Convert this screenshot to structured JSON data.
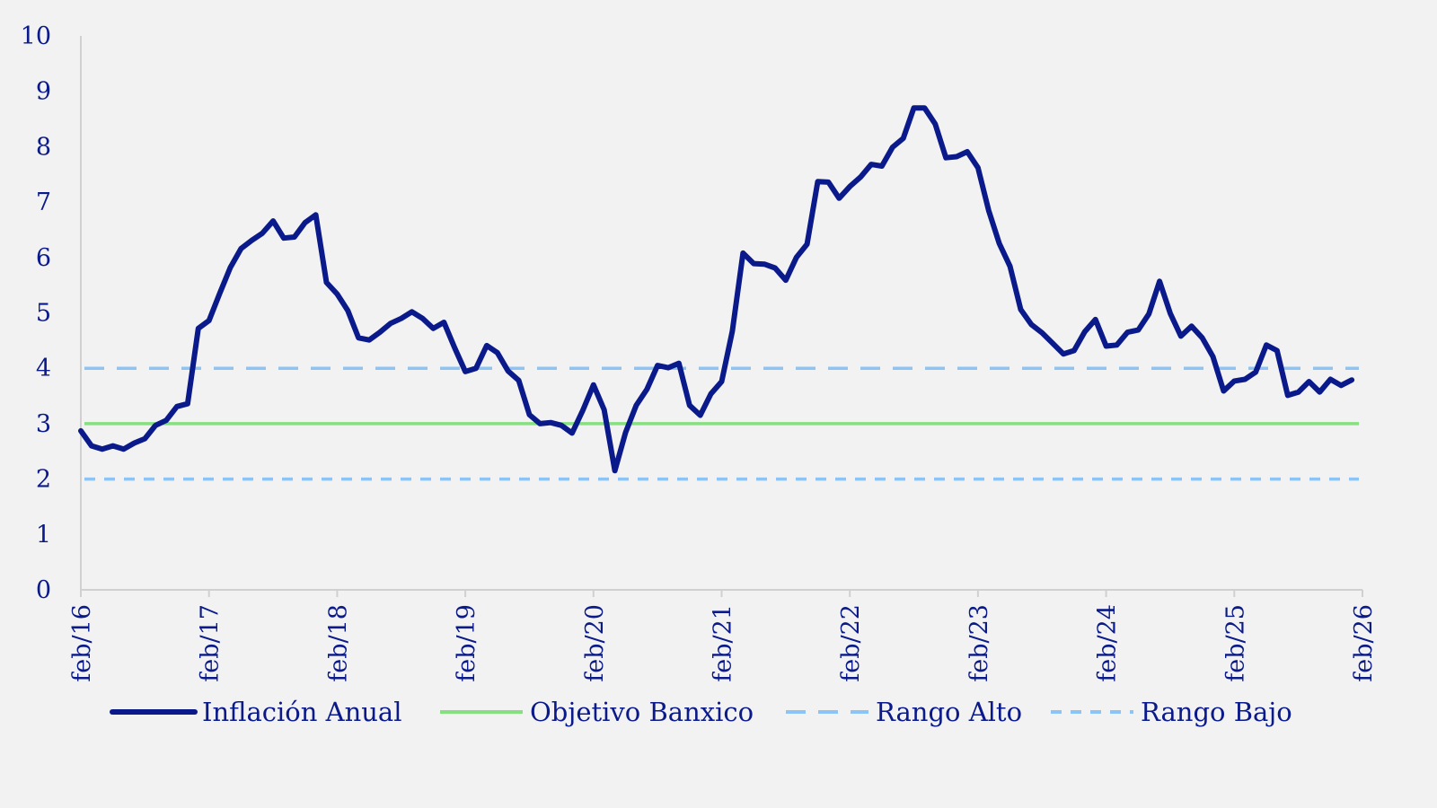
{
  "chart_data": {
    "type": "line",
    "title": "",
    "xlabel": "",
    "ylabel": "",
    "ylim": [
      0,
      10
    ],
    "yticks": [
      "0",
      "1",
      "2",
      "3",
      "4",
      "5",
      "6",
      "7",
      "8",
      "9",
      "10"
    ],
    "xticks": [
      "feb/16",
      "feb/17",
      "feb/18",
      "feb/19",
      "feb/20",
      "feb/21",
      "feb/22",
      "feb/23",
      "feb/24",
      "feb/25",
      "feb/26"
    ],
    "grid": false,
    "legend_position": "bottom",
    "start_month": "feb/16",
    "series": [
      {
        "name": "Inflación Anual",
        "color": "#0a1a8a",
        "style": "solid",
        "values": [
          2.87,
          2.6,
          2.54,
          2.6,
          2.54,
          2.65,
          2.73,
          2.97,
          3.06,
          3.31,
          3.36,
          4.72,
          4.86,
          5.35,
          5.82,
          6.16,
          6.31,
          6.44,
          6.66,
          6.35,
          6.37,
          6.63,
          6.77,
          5.55,
          5.34,
          5.04,
          4.55,
          4.51,
          4.65,
          4.81,
          4.9,
          5.02,
          4.9,
          4.72,
          4.83,
          4.37,
          3.94,
          4.0,
          4.41,
          4.28,
          3.95,
          3.78,
          3.16,
          3.0,
          3.02,
          2.97,
          2.83,
          3.24,
          3.7,
          3.25,
          2.15,
          2.84,
          3.33,
          3.62,
          4.05,
          4.01,
          4.09,
          3.33,
          3.15,
          3.54,
          3.76,
          4.67,
          6.08,
          5.89,
          5.88,
          5.81,
          5.59,
          6.0,
          6.24,
          7.37,
          7.36,
          7.07,
          7.28,
          7.45,
          7.68,
          7.65,
          7.99,
          8.15,
          8.7,
          8.7,
          8.41,
          7.8,
          7.82,
          7.91,
          7.62,
          6.85,
          6.25,
          5.84,
          5.06,
          4.79,
          4.64,
          4.45,
          4.26,
          4.32,
          4.66,
          4.88,
          4.4,
          4.42,
          4.65,
          4.69,
          4.98,
          5.57,
          4.99,
          4.58,
          4.76,
          4.55,
          4.21,
          3.59,
          3.77,
          3.8,
          3.93,
          4.42,
          4.32,
          3.51,
          3.57,
          3.76,
          3.57,
          3.8,
          3.69,
          3.79
        ]
      },
      {
        "name": "Objetivo Banxico",
        "color": "#86e07f",
        "style": "solid",
        "constant": 3
      },
      {
        "name": "Rango Alto",
        "color": "#8cc4f5",
        "style": "long-dash",
        "constant": 4
      },
      {
        "name": "Rango Bajo",
        "color": "#8cc4f5",
        "style": "short-dash",
        "constant": 2
      }
    ]
  }
}
